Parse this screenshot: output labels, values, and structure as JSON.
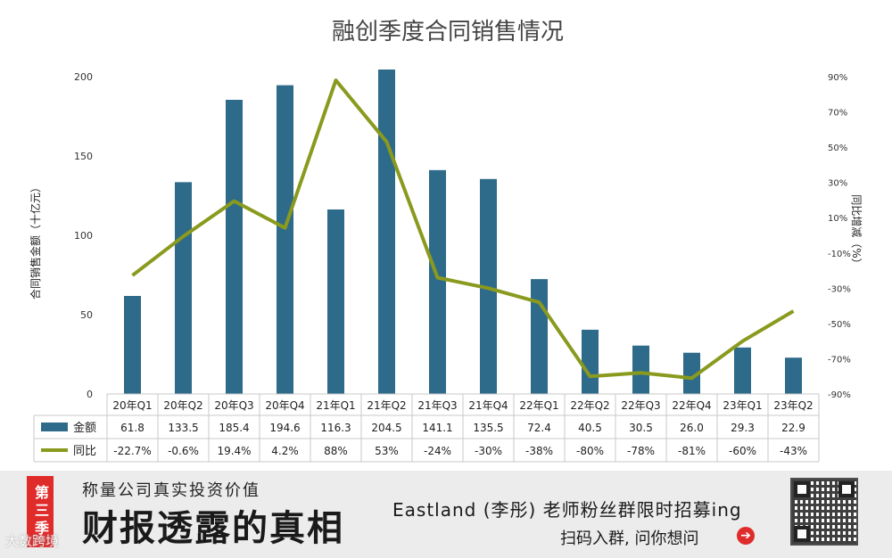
{
  "chart_data": {
    "type": "bar",
    "title": "融创季度合同销售情况",
    "ylabel": "合同销售金额（十亿元）",
    "y2label": "同比增减（%）",
    "categories": [
      "20年Q1",
      "20年Q2",
      "20年Q3",
      "20年Q4",
      "21年Q1",
      "21年Q2",
      "21年Q3",
      "21年Q4",
      "22年Q1",
      "22年Q2",
      "22年Q3",
      "22年Q4",
      "23年Q1",
      "23年Q2"
    ],
    "ylim": [
      0,
      200
    ],
    "yticks": [
      "0",
      "50",
      "100",
      "150",
      "200"
    ],
    "y2lim": [
      -90,
      90
    ],
    "y2ticks": [
      "-90%",
      "-70%",
      "-50%",
      "-30%",
      "-10%",
      "10%",
      "30%",
      "50%",
      "70%",
      "90%"
    ],
    "series": [
      {
        "name": "金额",
        "kind": "bar",
        "color": "#2e6a8a",
        "values": [
          61.8,
          133.5,
          185.4,
          194.6,
          116.3,
          204.5,
          141.1,
          135.5,
          72.4,
          40.5,
          30.5,
          26.0,
          29.3,
          22.9
        ],
        "labels": [
          "61.8",
          "133.5",
          "185.4",
          "194.6",
          "116.3",
          "204.5",
          "141.1",
          "135.5",
          "72.4",
          "40.5",
          "30.5",
          "26.0",
          "29.3",
          "22.9"
        ]
      },
      {
        "name": "同比",
        "kind": "line",
        "color": "#8a9a1e",
        "axis": "right",
        "values": [
          -22.7,
          -0.6,
          19.4,
          4.2,
          88,
          53,
          -24,
          -30,
          -38,
          -80,
          -78,
          -81,
          -60,
          -43
        ],
        "labels": [
          "-22.7%",
          "-0.6%",
          "19.4%",
          "4.2%",
          "88%",
          "53%",
          "-24%",
          "-30%",
          "-38%",
          "-80%",
          "-78%",
          "-81%",
          "-60%",
          "-43%"
        ]
      }
    ]
  },
  "banner": {
    "season": "第三季",
    "tagline": "称量公司真实投资价值",
    "brand": "财报透露的真相",
    "watermark": "大数跨境",
    "recruit": "Eastland (李彤) 老师粉丝群限时招募ing",
    "scan": "扫码入群, 问你想问",
    "arrow_icon": "➔"
  }
}
